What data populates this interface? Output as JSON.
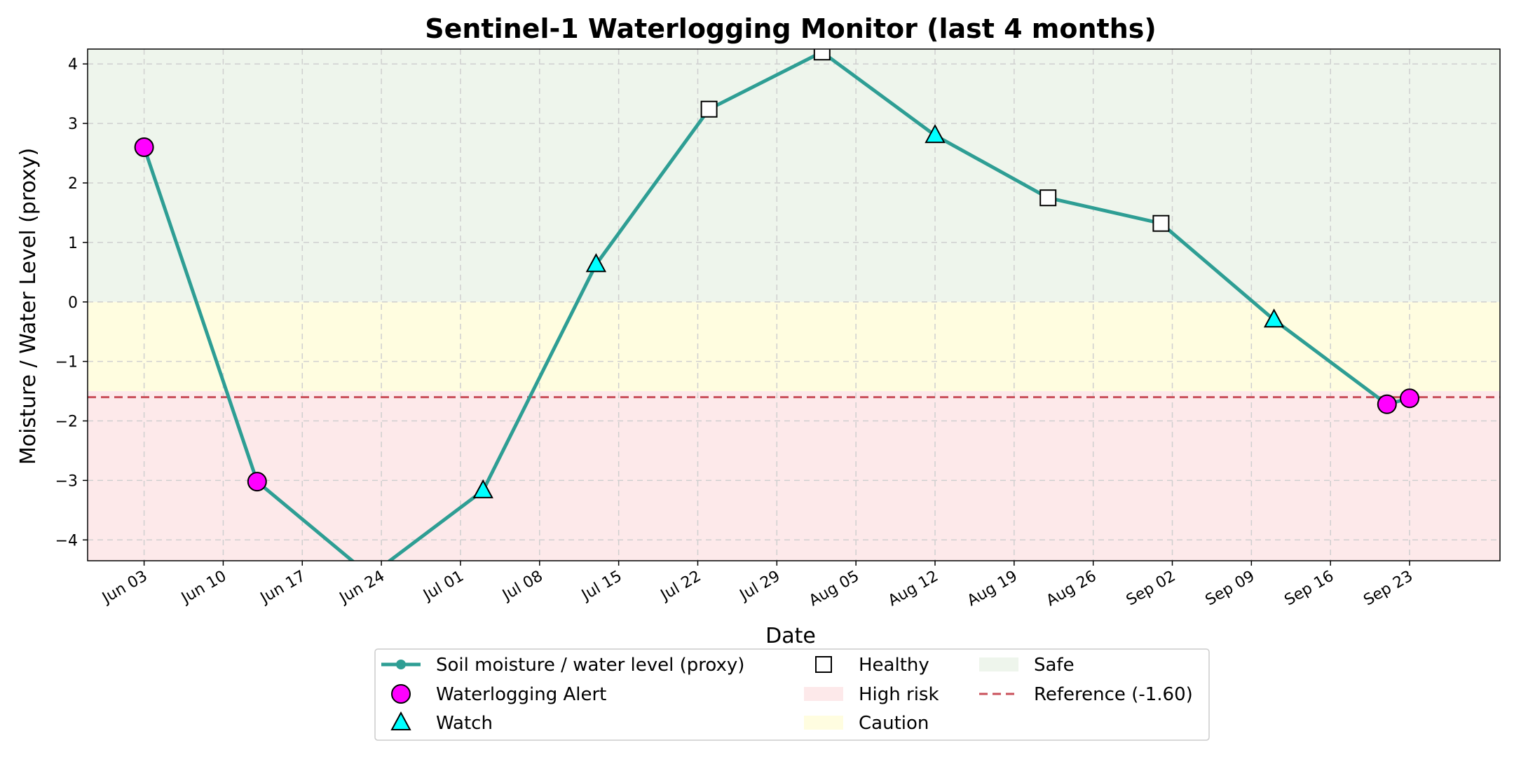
{
  "chart_data": {
    "type": "line",
    "title": "Sentinel-1 Waterlogging Monitor (last 4 months)",
    "xlabel": "Date",
    "ylabel": "Moisture / Water Level (proxy)",
    "xlim": [
      "2025-05-29",
      "2025-10-01"
    ],
    "ylim": [
      -4.35,
      4.25
    ],
    "y_ticks": [
      4,
      3,
      2,
      1,
      0,
      -1,
      -2,
      -3,
      -4
    ],
    "y_tick_labels": [
      "4",
      "3",
      "2",
      "1",
      "0",
      "−1",
      "−2",
      "−3",
      "−4"
    ],
    "x_ticks": [
      "2025-06-03",
      "2025-06-10",
      "2025-06-17",
      "2025-06-24",
      "2025-07-01",
      "2025-07-08",
      "2025-07-15",
      "2025-07-22",
      "2025-07-29",
      "2025-08-05",
      "2025-08-12",
      "2025-08-19",
      "2025-08-26",
      "2025-09-02",
      "2025-09-09",
      "2025-09-16",
      "2025-09-23"
    ],
    "x_tick_labels": [
      "Jun 03",
      "Jun 10",
      "Jun 17",
      "Jun 24",
      "Jul 01",
      "Jul 08",
      "Jul 15",
      "Jul 22",
      "Jul 29",
      "Aug 05",
      "Aug 12",
      "Aug 19",
      "Aug 26",
      "Sep 02",
      "Sep 09",
      "Sep 16",
      "Sep 23"
    ],
    "grid": true,
    "zones": [
      {
        "name": "Safe",
        "from": 0,
        "to": 4.25,
        "color": "#eef5ec"
      },
      {
        "name": "Caution",
        "from": -1.5,
        "to": 0,
        "color": "#fffde0"
      },
      {
        "name": "High risk",
        "from": -4.35,
        "to": -1.5,
        "color": "#fde9ea"
      }
    ],
    "reference": {
      "name": "Reference (-1.60)",
      "value": -1.6,
      "color": "#c9505a"
    },
    "series": [
      {
        "name": "Soil moisture / water level (proxy)",
        "color": "#2e9e94",
        "points": [
          {
            "x": "2025-06-03",
            "y": 2.6,
            "status": "Waterlogging Alert"
          },
          {
            "x": "2025-06-13",
            "y": -3.02,
            "status": "Waterlogging Alert"
          },
          {
            "x": "2025-06-23",
            "y": -4.6,
            "status": "Waterlogging Alert"
          },
          {
            "x": "2025-07-03",
            "y": -3.17,
            "status": "Watch"
          },
          {
            "x": "2025-07-13",
            "y": 0.63,
            "status": "Watch"
          },
          {
            "x": "2025-07-23",
            "y": 3.24,
            "status": "Healthy"
          },
          {
            "x": "2025-08-02",
            "y": 4.2,
            "status": "Healthy"
          },
          {
            "x": "2025-08-12",
            "y": 2.8,
            "status": "Watch"
          },
          {
            "x": "2025-08-22",
            "y": 1.75,
            "status": "Healthy"
          },
          {
            "x": "2025-09-01",
            "y": 1.32,
            "status": "Healthy"
          },
          {
            "x": "2025-09-11",
            "y": -0.3,
            "status": "Watch"
          },
          {
            "x": "2025-09-21",
            "y": -1.72,
            "status": "Waterlogging Alert"
          },
          {
            "x": "2025-09-23",
            "y": -1.62,
            "status": "Waterlogging Alert"
          }
        ]
      }
    ],
    "marker_styles": {
      "Waterlogging Alert": {
        "shape": "circle",
        "fill": "#ff00ff"
      },
      "Watch": {
        "shape": "triangle",
        "fill": "#00ffff"
      },
      "Healthy": {
        "shape": "square",
        "fill": "#ffffff"
      }
    },
    "legend": {
      "position": "bottom-center",
      "entries": [
        {
          "label": "Soil moisture / water level (proxy)",
          "kind": "line"
        },
        {
          "label": "Waterlogging Alert",
          "kind": "circle"
        },
        {
          "label": "Watch",
          "kind": "triangle"
        },
        {
          "label": "Healthy",
          "kind": "square"
        },
        {
          "label": "High risk",
          "kind": "patch-high"
        },
        {
          "label": "Caution",
          "kind": "patch-caution"
        },
        {
          "label": "Safe",
          "kind": "patch-safe"
        },
        {
          "label": "Reference (-1.60)",
          "kind": "dashed"
        }
      ]
    }
  }
}
